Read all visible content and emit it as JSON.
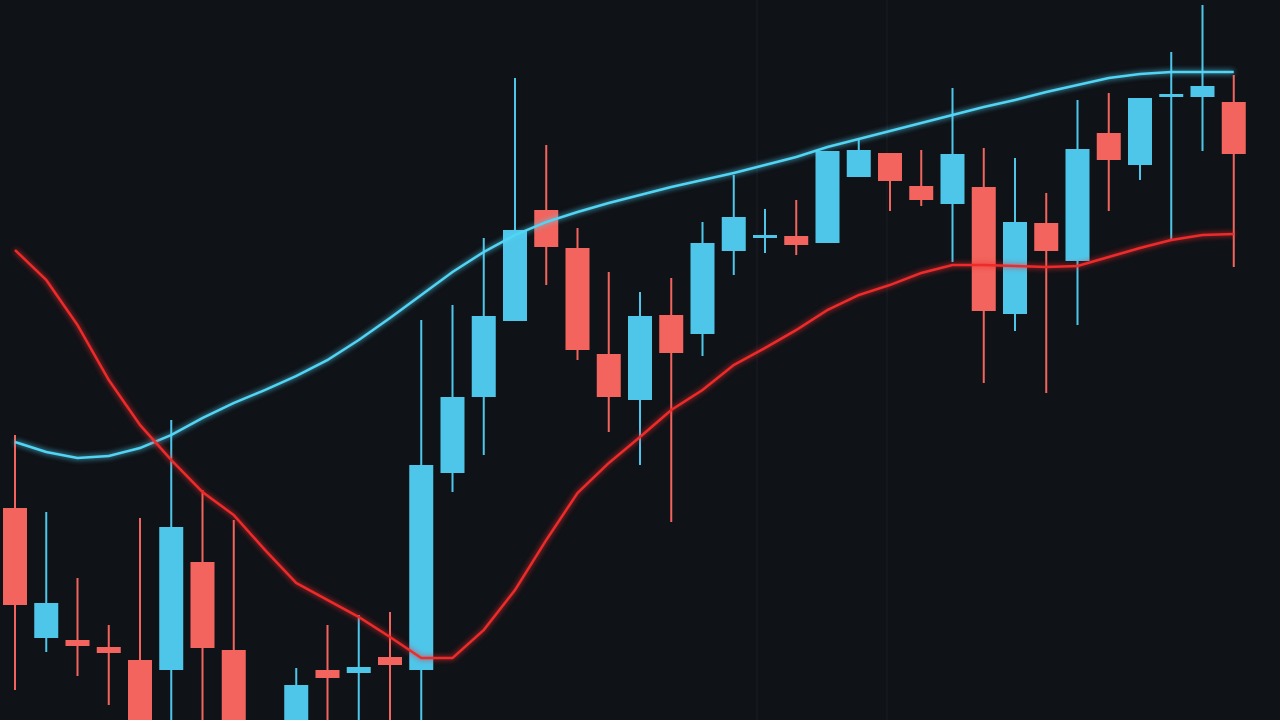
{
  "chart_data": {
    "type": "candlestick",
    "ylim": [
      0,
      720
    ],
    "up_color": "#4ec6ea",
    "down_color": "#f2645d",
    "open": [
      212,
      82,
      80,
      73,
      60,
      50,
      158,
      70,
      null,
      0,
      50,
      47,
      63,
      50,
      247,
      323,
      399,
      510,
      472,
      366,
      320,
      405,
      386,
      469,
      482,
      484,
      477,
      543,
      567,
      534,
      516,
      533,
      406,
      497,
      459,
      587,
      555,
      623,
      623,
      618
    ],
    "high": [
      285,
      208,
      142,
      95,
      202,
      300,
      230,
      200,
      null,
      52,
      95,
      105,
      108,
      400,
      415,
      482,
      642,
      575,
      492,
      448,
      428,
      442,
      498,
      545,
      511,
      520,
      569,
      580,
      567,
      570,
      632,
      572,
      562,
      527,
      620,
      627,
      622,
      668,
      715,
      645
    ],
    "low": [
      30,
      68,
      44,
      15,
      0,
      0,
      0,
      0,
      null,
      0,
      0,
      0,
      0,
      0,
      228,
      265,
      399,
      435,
      360,
      288,
      255,
      198,
      364,
      445,
      467,
      465,
      477,
      543,
      509,
      514,
      458,
      337,
      389,
      327,
      395,
      509,
      540,
      480,
      569,
      453
    ],
    "close": [
      115,
      117,
      74,
      67,
      0,
      193,
      72,
      0,
      null,
      35,
      42,
      53,
      55,
      255,
      323,
      404,
      490,
      473,
      370,
      323,
      404,
      367,
      477,
      503,
      485,
      475,
      569,
      570,
      539,
      520,
      566,
      409,
      498,
      469,
      571,
      560,
      622,
      626,
      634,
      566
    ],
    "moving_averages": [
      {
        "color": "#52d4f5",
        "values": [
          278,
          268,
          262,
          264,
          272,
          285,
          302,
          317,
          330,
          344,
          360,
          380,
          402,
          425,
          448,
          468,
          485,
          498,
          508,
          517,
          525,
          533,
          540,
          547,
          555,
          563,
          573,
          581,
          589,
          597,
          605,
          613,
          620,
          628,
          635,
          642,
          646,
          648,
          648,
          648
        ]
      },
      {
        "color": "#ee2a2a",
        "values": [
          470,
          440,
          395,
          340,
          295,
          260,
          228,
          205,
          170,
          137,
          120,
          103,
          83,
          62,
          62,
          90,
          130,
          180,
          227,
          257,
          283,
          310,
          330,
          355,
          372,
          390,
          410,
          425,
          435,
          447,
          455,
          455,
          454,
          453,
          454,
          463,
          472,
          480,
          485,
          486
        ]
      }
    ]
  }
}
